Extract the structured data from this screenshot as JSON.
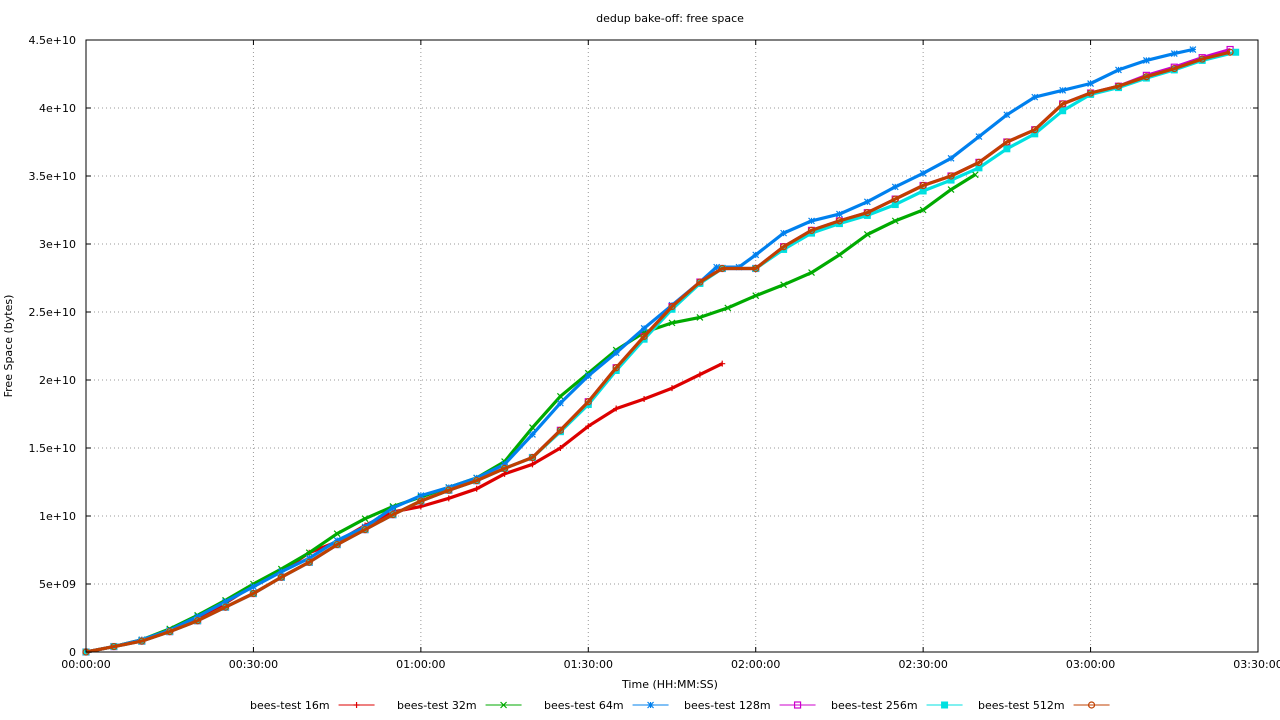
{
  "chart_data": {
    "type": "scatter",
    "title": "dedup bake-off: free space",
    "xlabel": "Time (HH:MM:SS)",
    "ylabel": "Free Space (bytes)",
    "x_unit": "seconds",
    "xlim": [
      0,
      12600
    ],
    "ylim": [
      0,
      45000000000
    ],
    "x_ticks": [
      0,
      1800,
      3600,
      5400,
      7200,
      9000,
      10800,
      12600
    ],
    "x_tick_labels": [
      "00:00:00",
      "00:30:00",
      "01:00:00",
      "01:30:00",
      "02:00:00",
      "02:30:00",
      "03:00:00",
      "03:30:00"
    ],
    "y_ticks": [
      0,
      5000000000,
      10000000000,
      15000000000,
      20000000000,
      25000000000,
      30000000000,
      35000000000,
      40000000000,
      45000000000
    ],
    "y_tick_labels": [
      "0",
      "5e+09",
      "1e+10",
      "1.5e+10",
      "2e+10",
      "2.5e+10",
      "3e+10",
      "3.5e+10",
      "4e+10",
      "4.5e+10"
    ],
    "grid": true,
    "legend_position": "bottom",
    "series": [
      {
        "name": "bees-test 16m",
        "color": "#dd0000",
        "marker": "plus",
        "x": [
          0,
          300,
          600,
          900,
          1200,
          1500,
          1800,
          2100,
          2400,
          2700,
          3000,
          3300,
          3600,
          3900,
          4200,
          4500,
          4800,
          5100,
          5400,
          5700,
          6000,
          6300,
          6600,
          6840
        ],
        "y": [
          0,
          400000000,
          900000000,
          1600000000,
          2400000000,
          3600000000,
          4900000000,
          5900000000,
          7300000000,
          8100000000,
          9300000000,
          10300000000,
          10700000000,
          11300000000,
          12000000000,
          13100000000,
          13800000000,
          15000000000,
          16600000000,
          17900000000,
          18600000000,
          19400000000,
          20400000000,
          21200000000
        ]
      },
      {
        "name": "bees-test 32m",
        "color": "#00aa00",
        "marker": "cross",
        "x": [
          0,
          300,
          600,
          900,
          1200,
          1500,
          1800,
          2100,
          2400,
          2700,
          3000,
          3300,
          3600,
          3900,
          4200,
          4500,
          4800,
          5100,
          5400,
          5700,
          6000,
          6300,
          6600,
          6900,
          7200,
          7500,
          7800,
          8100,
          8400,
          8700,
          9000,
          9300,
          9560
        ],
        "y": [
          0,
          400000000,
          900000000,
          1700000000,
          2700000000,
          3800000000,
          5000000000,
          6100000000,
          7300000000,
          8700000000,
          9800000000,
          10700000000,
          11400000000,
          12100000000,
          12800000000,
          14000000000,
          16500000000,
          18800000000,
          20500000000,
          22200000000,
          23500000000,
          24200000000,
          24600000000,
          25300000000,
          26200000000,
          27000000000,
          27900000000,
          29200000000,
          30700000000,
          31700000000,
          32500000000,
          34000000000,
          35100000000
        ]
      },
      {
        "name": "bees-test 64m",
        "color": "#0080ee",
        "marker": "asterisk",
        "x": [
          0,
          300,
          600,
          900,
          1200,
          1500,
          1800,
          2100,
          2400,
          2700,
          3000,
          3300,
          3600,
          3900,
          4200,
          4500,
          4800,
          5100,
          5400,
          5700,
          6000,
          6300,
          6600,
          6780,
          7020,
          7200,
          7500,
          7800,
          8100,
          8400,
          8700,
          9000,
          9300,
          9600,
          9900,
          10200,
          10500,
          10800,
          11100,
          11400,
          11700,
          11900
        ],
        "y": [
          0,
          400000000,
          900000000,
          1600000000,
          2600000000,
          3700000000,
          4800000000,
          5900000000,
          6900000000,
          8200000000,
          9200000000,
          10600000000,
          11500000000,
          12100000000,
          12800000000,
          13800000000,
          16000000000,
          18300000000,
          20300000000,
          22000000000,
          23800000000,
          25500000000,
          27200000000,
          28300000000,
          28300000000,
          29200000000,
          30800000000,
          31700000000,
          32200000000,
          33100000000,
          34200000000,
          35200000000,
          36300000000,
          37900000000,
          39500000000,
          40800000000,
          41300000000,
          41800000000,
          42800000000,
          43500000000,
          44000000000,
          44300000000
        ]
      },
      {
        "name": "bees-test 128m",
        "color": "#cc00cc",
        "marker": "square",
        "x": [
          0,
          300,
          600,
          900,
          1200,
          1500,
          1800,
          2100,
          2400,
          2700,
          3000,
          3300,
          3600,
          3900,
          4200,
          4500,
          4800,
          5100,
          5400,
          5700,
          6000,
          6300,
          6600,
          6840,
          7200,
          7500,
          7800,
          8100,
          8400,
          8700,
          9000,
          9300,
          9600,
          9900,
          10200,
          10500,
          10800,
          11100,
          11400,
          11700,
          12000,
          12300
        ],
        "y": [
          0,
          400000000,
          800000000,
          1500000000,
          2300000000,
          3300000000,
          4300000000,
          5500000000,
          6600000000,
          7900000000,
          9000000000,
          10100000000,
          11100000000,
          11900000000,
          12600000000,
          13500000000,
          14300000000,
          16300000000,
          18400000000,
          20900000000,
          23200000000,
          25400000000,
          27200000000,
          28200000000,
          28200000000,
          29800000000,
          31000000000,
          31700000000,
          32300000000,
          33300000000,
          34300000000,
          35000000000,
          36000000000,
          37500000000,
          38400000000,
          40300000000,
          41100000000,
          41600000000,
          42400000000,
          43000000000,
          43700000000,
          44300000000
        ]
      },
      {
        "name": "bees-test 256m",
        "color": "#00e0e0",
        "marker": "filled-square",
        "x": [
          0,
          300,
          600,
          900,
          1200,
          1500,
          1800,
          2100,
          2400,
          2700,
          3000,
          3300,
          3600,
          3900,
          4200,
          4500,
          4800,
          5100,
          5400,
          5700,
          6000,
          6300,
          6600,
          6840,
          7200,
          7500,
          7800,
          8100,
          8400,
          8700,
          9000,
          9300,
          9600,
          9900,
          10200,
          10500,
          10800,
          11100,
          11400,
          11700,
          12000,
          12360
        ],
        "y": [
          0,
          400000000,
          800000000,
          1500000000,
          2300000000,
          3300000000,
          4300000000,
          5500000000,
          6600000000,
          7900000000,
          9000000000,
          10100000000,
          11100000000,
          11900000000,
          12600000000,
          13500000000,
          14300000000,
          16200000000,
          18200000000,
          20700000000,
          23000000000,
          25200000000,
          27100000000,
          28200000000,
          28200000000,
          29600000000,
          30800000000,
          31500000000,
          32100000000,
          32900000000,
          33900000000,
          34700000000,
          35600000000,
          37000000000,
          38100000000,
          39800000000,
          41000000000,
          41500000000,
          42200000000,
          42800000000,
          43500000000,
          44100000000
        ]
      },
      {
        "name": "bees-test 512m",
        "color": "#c04000",
        "marker": "circle",
        "x": [
          0,
          300,
          600,
          900,
          1200,
          1500,
          1800,
          2100,
          2400,
          2700,
          3000,
          3300,
          3600,
          3900,
          4200,
          4500,
          4800,
          5100,
          5400,
          5700,
          6000,
          6300,
          6600,
          6840,
          7200,
          7500,
          7800,
          8100,
          8400,
          8700,
          9000,
          9300,
          9600,
          9900,
          10200,
          10500,
          10800,
          11100,
          11400,
          11700,
          12000,
          12300
        ],
        "y": [
          0,
          400000000,
          800000000,
          1500000000,
          2300000000,
          3300000000,
          4300000000,
          5500000000,
          6600000000,
          7900000000,
          9000000000,
          10100000000,
          11100000000,
          11900000000,
          12600000000,
          13500000000,
          14300000000,
          16300000000,
          18400000000,
          20900000000,
          23200000000,
          25400000000,
          27200000000,
          28200000000,
          28200000000,
          29800000000,
          31000000000,
          31700000000,
          32300000000,
          33300000000,
          34300000000,
          35000000000,
          36000000000,
          37500000000,
          38400000000,
          40300000000,
          41100000000,
          41600000000,
          42300000000,
          42900000000,
          43600000000,
          44100000000
        ]
      }
    ]
  }
}
